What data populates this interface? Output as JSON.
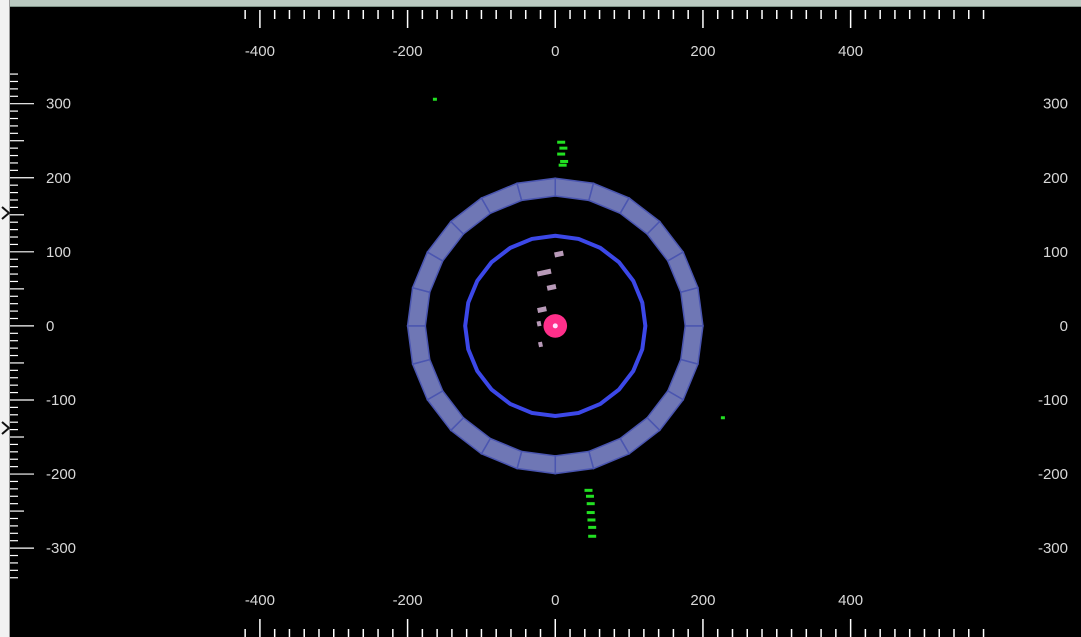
{
  "viewer": {
    "x_tick_labels": [
      "-400",
      "-200",
      "0",
      "200",
      "400"
    ],
    "y_tick_labels": [
      "300",
      "200",
      "100",
      "0",
      "-100",
      "-200",
      "-300"
    ],
    "x_ticks": [
      -400,
      -200,
      0,
      200,
      400
    ],
    "y_ticks": [
      300,
      200,
      100,
      0,
      -100,
      -200,
      -300
    ],
    "view_range": {
      "x": [
        -752,
        712
      ],
      "y": [
        -420,
        440
      ]
    },
    "colors": {
      "background": "#000000",
      "axis": "#ffffff",
      "outer_ring_fill": "#6f77b5",
      "outer_ring_edge": "#4a55b0",
      "inner_ring": "#3c48e8",
      "vertex_fill": "#ff2f8a",
      "vertex_core": "#ffe0ff",
      "track_hits": "#b89ab8",
      "green_hits": "#22e022"
    },
    "detector": {
      "inner_ring_radius": 122,
      "inner_ring_segments": 24,
      "outer_ring_inner_radius": 176,
      "outer_ring_outer_radius": 200,
      "outer_ring_segments": 24,
      "vertex": {
        "x": 0,
        "y": 0,
        "radius": 16
      }
    },
    "hits": {
      "track": [
        {
          "x": 5,
          "y": 97
        },
        {
          "x": -15,
          "y": 72
        },
        {
          "x": -5,
          "y": 52
        },
        {
          "x": -18,
          "y": 22
        },
        {
          "x": -22,
          "y": 3
        },
        {
          "x": -20,
          "y": -25
        }
      ],
      "green": [
        {
          "x": -163,
          "y": 306
        },
        {
          "x": 8,
          "y": 248
        },
        {
          "x": 11,
          "y": 240
        },
        {
          "x": 8,
          "y": 232
        },
        {
          "x": 12,
          "y": 222
        },
        {
          "x": 10,
          "y": 217
        },
        {
          "x": 227,
          "y": -124
        },
        {
          "x": 45,
          "y": -222
        },
        {
          "x": 47,
          "y": -230
        },
        {
          "x": 48,
          "y": -240
        },
        {
          "x": 48,
          "y": -252
        },
        {
          "x": 49,
          "y": -262
        },
        {
          "x": 50,
          "y": -272
        },
        {
          "x": 50,
          "y": -284
        }
      ]
    }
  }
}
